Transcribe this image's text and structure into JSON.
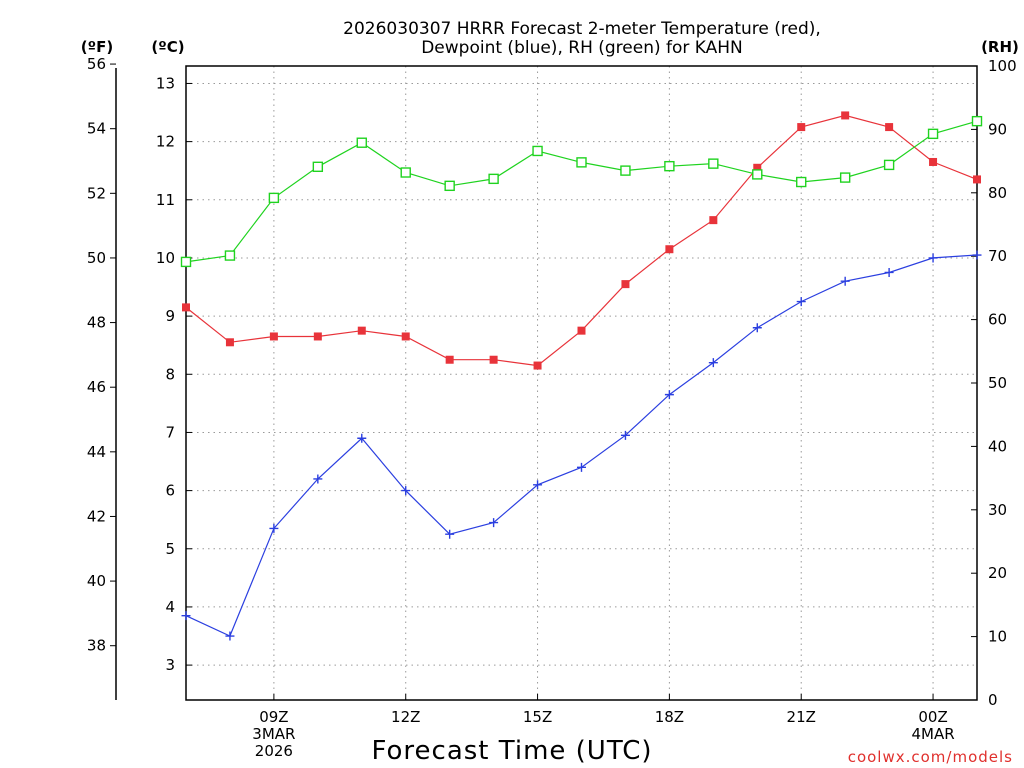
{
  "chart_data": {
    "type": "line",
    "title_lines": [
      "2026030307 HRRR Forecast 2-meter Temperature (red),",
      "Dewpoint (blue), RH (green) for KAHN"
    ],
    "units": {
      "fahrenheit": "(ºF)",
      "celsius": "(ºC)",
      "rh": "(RH)"
    },
    "xlabel": "Forecast Time (UTC)",
    "credit": "coolwx.com/models",
    "x_hours": [
      7,
      8,
      9,
      10,
      11,
      12,
      13,
      14,
      15,
      16,
      17,
      18,
      19,
      20,
      21,
      22,
      23,
      24,
      25
    ],
    "x_range": [
      7,
      25
    ],
    "x_ticks": [
      {
        "hour": 9,
        "lines": [
          "09Z",
          "3MAR",
          "2026"
        ]
      },
      {
        "hour": 12,
        "lines": [
          "12Z"
        ]
      },
      {
        "hour": 15,
        "lines": [
          "15Z"
        ]
      },
      {
        "hour": 18,
        "lines": [
          "18Z"
        ]
      },
      {
        "hour": 21,
        "lines": [
          "21Z"
        ]
      },
      {
        "hour": 24,
        "lines": [
          "00Z",
          "4MAR"
        ]
      }
    ],
    "celsius_axis": {
      "range": [
        2.4,
        13.3
      ],
      "ticks": [
        "3",
        "4",
        "5",
        "6",
        "7",
        "8",
        "9",
        "10",
        "11",
        "12",
        "13"
      ]
    },
    "fahrenheit_axis": {
      "range": [
        36.32,
        55.94
      ],
      "ticks": [
        "38",
        "40",
        "42",
        "44",
        "46",
        "48",
        "50",
        "52",
        "54",
        "56"
      ]
    },
    "rh_axis": {
      "range": [
        0,
        100
      ],
      "ticks": [
        "0",
        "10",
        "20",
        "30",
        "40",
        "50",
        "60",
        "70",
        "80",
        "90",
        "100"
      ]
    },
    "series": [
      {
        "name": "2-meter Temperature",
        "axis": "celsius",
        "color": "#e8333a",
        "marker": "filled-square",
        "values": [
          9.15,
          8.55,
          8.65,
          8.65,
          8.75,
          8.65,
          8.25,
          8.25,
          8.15,
          8.75,
          9.55,
          10.15,
          10.65,
          11.55,
          12.25,
          12.45,
          12.25,
          11.65,
          11.35
        ]
      },
      {
        "name": "Dewpoint",
        "axis": "celsius",
        "color": "#2b3fe0",
        "marker": "plus",
        "values": [
          3.85,
          3.5,
          5.35,
          6.2,
          6.9,
          6.0,
          5.25,
          5.45,
          6.1,
          6.4,
          6.95,
          7.65,
          8.2,
          8.8,
          9.25,
          9.6,
          9.75,
          10.0,
          10.05
        ]
      },
      {
        "name": "RH",
        "axis": "rh",
        "color": "#1fd31f",
        "marker": "open-square",
        "values": [
          69.1,
          70.1,
          79.2,
          84.1,
          87.9,
          83.2,
          81.1,
          82.2,
          86.6,
          84.8,
          83.5,
          84.2,
          84.6,
          82.9,
          81.7,
          82.4,
          84.4,
          89.3,
          91.3
        ]
      }
    ]
  }
}
